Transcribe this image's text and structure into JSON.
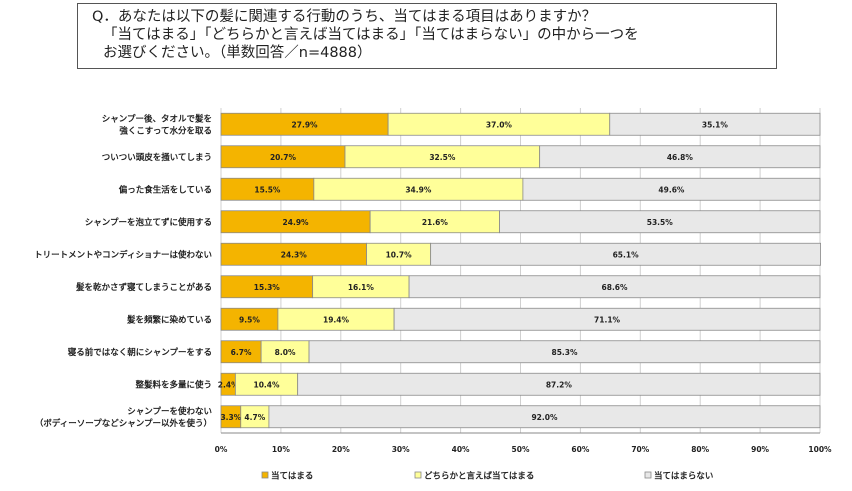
{
  "question": {
    "lines": [
      "Q．あなたは以下の髪に関連する行動のうち、当てはまる項目はありますか？",
      "「当てはまる」「どちらかと言えば当てはまる」「当てはまらない」の中から一つを",
      "お選びください。（単数回答／n=4888）"
    ]
  },
  "chart_data": {
    "type": "bar",
    "orientation": "horizontal",
    "stacked": true,
    "percent": true,
    "categories": [
      [
        "シャンプー後、タオルで髪を",
        "強くこすって水分を取る"
      ],
      [
        "ついつい頭皮を掻いてしまう"
      ],
      [
        "偏った食生活をしている"
      ],
      [
        "シャンプーを泡立てずに使用する"
      ],
      [
        "トリートメントやコンディショナーは使わない"
      ],
      [
        "髪を乾かさず寝てしまうことがある"
      ],
      [
        "髪を頻繁に染めている"
      ],
      [
        "寝る前ではなく朝にシャンプーをする"
      ],
      [
        "整髪料を多量に使う"
      ],
      [
        "シャンプーを使わない",
        "（ボディーソープなどシャンプー以外を使う）"
      ]
    ],
    "series": [
      {
        "name": "当てはまる",
        "color": "#f4b400",
        "values": [
          27.9,
          20.7,
          15.5,
          24.9,
          24.3,
          15.3,
          9.5,
          6.7,
          2.4,
          3.3
        ]
      },
      {
        "name": "どちらかと言えば当てはまる",
        "color": "#ffff99",
        "values": [
          37.0,
          32.5,
          34.9,
          21.6,
          10.7,
          16.1,
          19.4,
          8.0,
          10.4,
          4.7
        ]
      },
      {
        "name": "当てはまらない",
        "color": "#e8e8e8",
        "values": [
          35.1,
          46.8,
          49.6,
          53.5,
          65.1,
          68.6,
          71.1,
          85.3,
          87.2,
          92.0
        ]
      }
    ],
    "xlim": [
      0,
      100
    ],
    "xticks": [
      "0%",
      "10%",
      "20%",
      "30%",
      "40%",
      "50%",
      "60%",
      "70%",
      "80%",
      "90%",
      "100%"
    ],
    "legend_position": "bottom"
  }
}
